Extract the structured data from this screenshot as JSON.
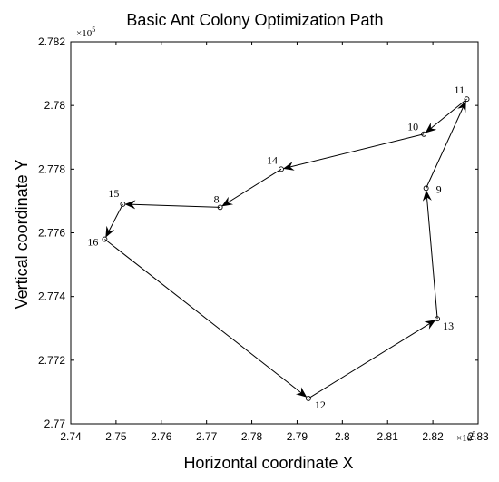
{
  "chart_data": {
    "type": "line",
    "title": "Basic Ant Colony Optimization Path",
    "xlabel": "Horizontal coordinate X",
    "ylabel": "Vertical coordinate Y",
    "x_exponent": "×10",
    "x_exponent_power": "5",
    "y_exponent": "×10",
    "y_exponent_power": "5",
    "xlim": [
      2.74,
      2.83
    ],
    "ylim": [
      2.77,
      2.782
    ],
    "xticks": [
      "2.74",
      "2.75",
      "2.76",
      "2.77",
      "2.78",
      "2.79",
      "2.8",
      "2.81",
      "2.82",
      "2.83"
    ],
    "yticks": [
      "2.77",
      "2.772",
      "2.774",
      "2.776",
      "2.778",
      "2.78",
      "2.782"
    ],
    "grid": false,
    "color": "#000000",
    "nodes": [
      {
        "id": "16",
        "x": 2.7475,
        "y": 2.7758
      },
      {
        "id": "12",
        "x": 2.7925,
        "y": 2.7708
      },
      {
        "id": "13",
        "x": 2.821,
        "y": 2.7733
      },
      {
        "id": "9",
        "x": 2.8185,
        "y": 2.7774
      },
      {
        "id": "11",
        "x": 2.8275,
        "y": 2.7802
      },
      {
        "id": "10",
        "x": 2.818,
        "y": 2.7791
      },
      {
        "id": "14",
        "x": 2.7865,
        "y": 2.778
      },
      {
        "id": "8",
        "x": 2.773,
        "y": 2.7768
      },
      {
        "id": "15",
        "x": 2.7515,
        "y": 2.7769
      }
    ],
    "path": [
      "16",
      "12",
      "13",
      "9",
      "11",
      "10",
      "14",
      "8",
      "15",
      "16"
    ]
  }
}
